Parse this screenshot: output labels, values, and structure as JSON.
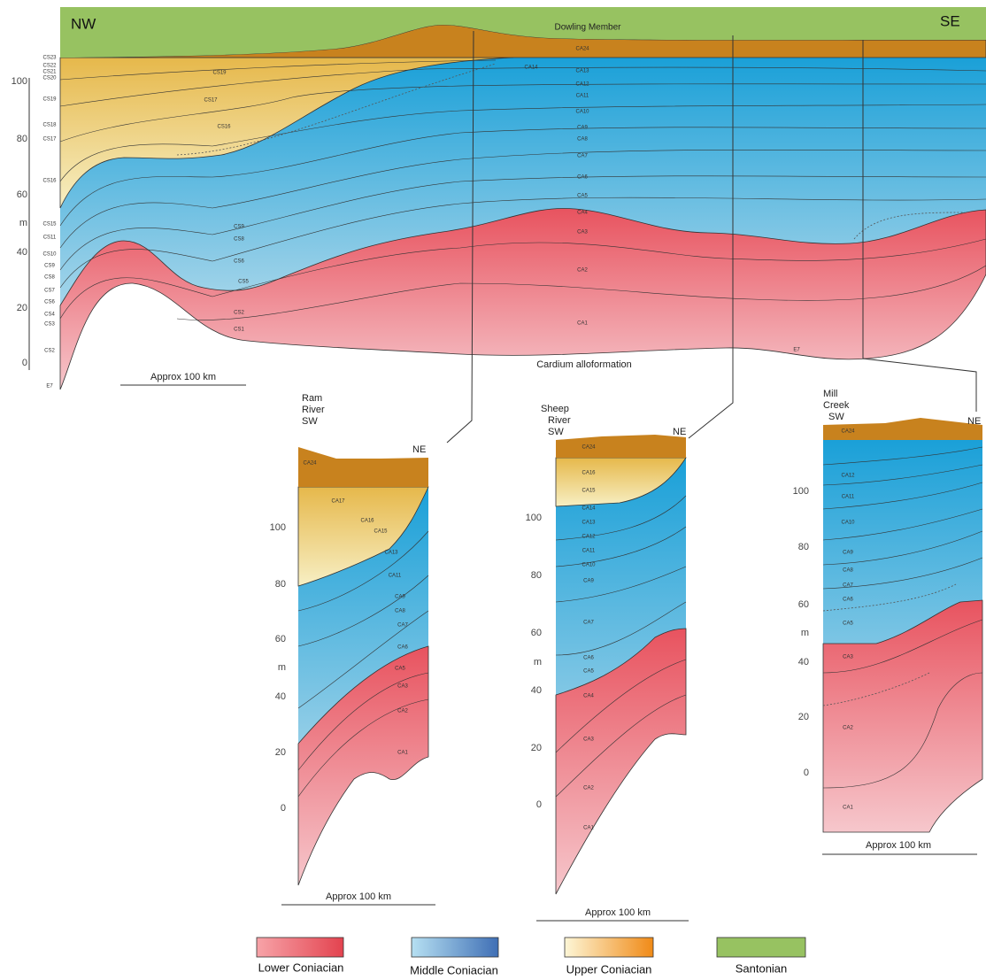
{
  "main": {
    "left": "NW",
    "right": "SE",
    "top_unit": "Dowling Member",
    "base_unit": "Cardium alloformation",
    "scale": "Approx 100 km",
    "axis": [
      "100",
      "80",
      "60",
      "m",
      "40",
      "20",
      "0"
    ],
    "edge_units": [
      "CS23",
      "CS22",
      "CS21",
      "CS20",
      "CS19",
      "CS18",
      "CS17",
      "CS16",
      "CS15",
      "CS11",
      "CS10",
      "CS9",
      "CS8",
      "CS7",
      "CS6",
      "CS4",
      "CS3",
      "CS2",
      "E7"
    ],
    "units": [
      "CA24",
      "CA14",
      "CA13",
      "CA12",
      "CA11",
      "CA10",
      "CA9",
      "CA8",
      "CA7",
      "CA6",
      "CA5",
      "CA4",
      "CA3",
      "CA2",
      "CA1",
      "E7",
      "CS19",
      "CS17",
      "CS16",
      "CS9",
      "CS8",
      "CS6",
      "CS5",
      "CS2",
      "CS1"
    ]
  },
  "panels": [
    {
      "title": [
        "Ram",
        "River",
        "SW"
      ],
      "right": "NE",
      "axis": [
        "100",
        "80",
        "60",
        "m",
        "40",
        "20",
        "0"
      ],
      "scale": "Approx 100 km",
      "units": [
        "CA24",
        "CA17",
        "CA16",
        "CA15",
        "CA13",
        "CA11",
        "CA9",
        "CA8",
        "CA7",
        "CA6",
        "CA5",
        "CA3",
        "CA2",
        "CA1"
      ]
    },
    {
      "title": [
        "Sheep",
        "River",
        "SW"
      ],
      "right": "NE",
      "axis": [
        "100",
        "80",
        "60",
        "m",
        "40",
        "20",
        "0"
      ],
      "scale": "Approx 100 km",
      "units": [
        "CA24",
        "CA16",
        "CA15",
        "CA14",
        "CA13",
        "CA12",
        "CA11",
        "CA10",
        "CA9",
        "CA7",
        "CA6",
        "CA5",
        "CA4",
        "CA3",
        "CA2",
        "CA1"
      ]
    },
    {
      "title": [
        "Mill",
        "Creek",
        "SW"
      ],
      "right": "NE",
      "axis": [
        "100",
        "80",
        "60",
        "m",
        "40",
        "20",
        "0"
      ],
      "scale": "Approx 100 km",
      "units": [
        "CA24",
        "CA12",
        "CA11",
        "CA10",
        "CA9",
        "CA8",
        "CA7",
        "CA6",
        "CA5",
        "CA3",
        "CA2",
        "CA1"
      ]
    }
  ],
  "legend": [
    "Lower Coniacian",
    "Middle Coniacian",
    "Upper Coniacian",
    "Santonian"
  ]
}
